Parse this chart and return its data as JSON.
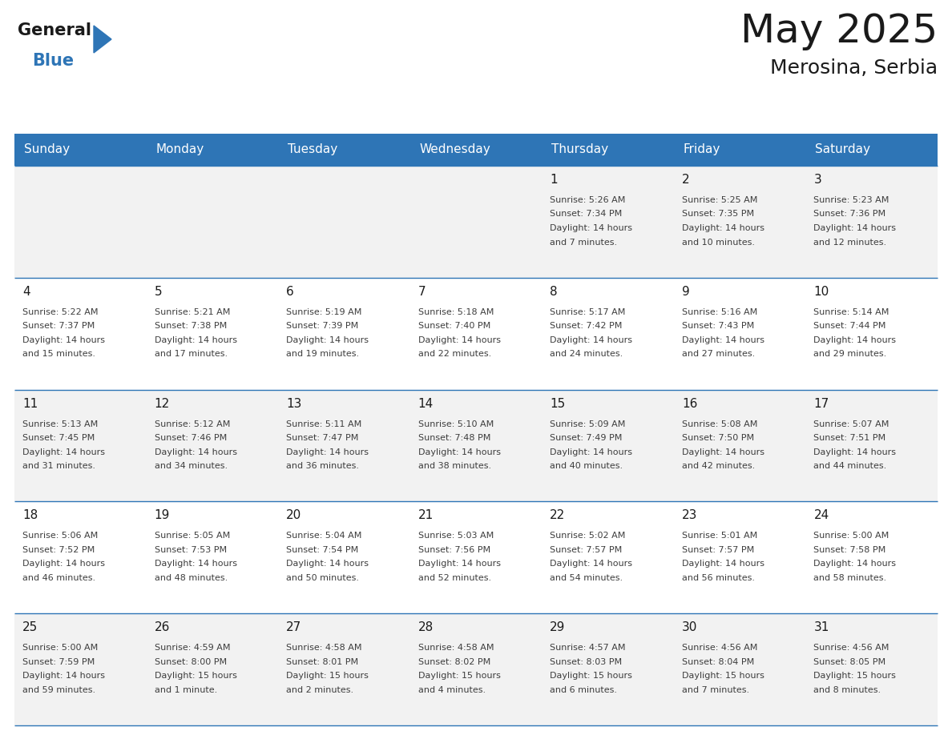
{
  "title": "May 2025",
  "subtitle": "Merosina, Serbia",
  "header_bg": "#2E75B6",
  "header_text_color": "#FFFFFF",
  "weekdays": [
    "Sunday",
    "Monday",
    "Tuesday",
    "Wednesday",
    "Thursday",
    "Friday",
    "Saturday"
  ],
  "cell_bg_row0": "#F2F2F2",
  "cell_bg_row1": "#FFFFFF",
  "cell_bg_row2": "#F2F2F2",
  "cell_bg_row3": "#FFFFFF",
  "cell_bg_row4": "#F2F2F2",
  "text_color": "#3D3D3D",
  "day_number_color": "#1A1A1A",
  "calendar": [
    [
      null,
      null,
      null,
      null,
      {
        "day": 1,
        "rise": "5:26 AM",
        "set": "7:34 PM",
        "hours": 14,
        "mins": 7
      },
      {
        "day": 2,
        "rise": "5:25 AM",
        "set": "7:35 PM",
        "hours": 14,
        "mins": 10
      },
      {
        "day": 3,
        "rise": "5:23 AM",
        "set": "7:36 PM",
        "hours": 14,
        "mins": 12
      }
    ],
    [
      {
        "day": 4,
        "rise": "5:22 AM",
        "set": "7:37 PM",
        "hours": 14,
        "mins": 15
      },
      {
        "day": 5,
        "rise": "5:21 AM",
        "set": "7:38 PM",
        "hours": 14,
        "mins": 17
      },
      {
        "day": 6,
        "rise": "5:19 AM",
        "set": "7:39 PM",
        "hours": 14,
        "mins": 19
      },
      {
        "day": 7,
        "rise": "5:18 AM",
        "set": "7:40 PM",
        "hours": 14,
        "mins": 22
      },
      {
        "day": 8,
        "rise": "5:17 AM",
        "set": "7:42 PM",
        "hours": 14,
        "mins": 24
      },
      {
        "day": 9,
        "rise": "5:16 AM",
        "set": "7:43 PM",
        "hours": 14,
        "mins": 27
      },
      {
        "day": 10,
        "rise": "5:14 AM",
        "set": "7:44 PM",
        "hours": 14,
        "mins": 29
      }
    ],
    [
      {
        "day": 11,
        "rise": "5:13 AM",
        "set": "7:45 PM",
        "hours": 14,
        "mins": 31
      },
      {
        "day": 12,
        "rise": "5:12 AM",
        "set": "7:46 PM",
        "hours": 14,
        "mins": 34
      },
      {
        "day": 13,
        "rise": "5:11 AM",
        "set": "7:47 PM",
        "hours": 14,
        "mins": 36
      },
      {
        "day": 14,
        "rise": "5:10 AM",
        "set": "7:48 PM",
        "hours": 14,
        "mins": 38
      },
      {
        "day": 15,
        "rise": "5:09 AM",
        "set": "7:49 PM",
        "hours": 14,
        "mins": 40
      },
      {
        "day": 16,
        "rise": "5:08 AM",
        "set": "7:50 PM",
        "hours": 14,
        "mins": 42
      },
      {
        "day": 17,
        "rise": "5:07 AM",
        "set": "7:51 PM",
        "hours": 14,
        "mins": 44
      }
    ],
    [
      {
        "day": 18,
        "rise": "5:06 AM",
        "set": "7:52 PM",
        "hours": 14,
        "mins": 46
      },
      {
        "day": 19,
        "rise": "5:05 AM",
        "set": "7:53 PM",
        "hours": 14,
        "mins": 48
      },
      {
        "day": 20,
        "rise": "5:04 AM",
        "set": "7:54 PM",
        "hours": 14,
        "mins": 50
      },
      {
        "day": 21,
        "rise": "5:03 AM",
        "set": "7:56 PM",
        "hours": 14,
        "mins": 52
      },
      {
        "day": 22,
        "rise": "5:02 AM",
        "set": "7:57 PM",
        "hours": 14,
        "mins": 54
      },
      {
        "day": 23,
        "rise": "5:01 AM",
        "set": "7:57 PM",
        "hours": 14,
        "mins": 56
      },
      {
        "day": 24,
        "rise": "5:00 AM",
        "set": "7:58 PM",
        "hours": 14,
        "mins": 58
      }
    ],
    [
      {
        "day": 25,
        "rise": "5:00 AM",
        "set": "7:59 PM",
        "hours": 14,
        "mins": 59
      },
      {
        "day": 26,
        "rise": "4:59 AM",
        "set": "8:00 PM",
        "hours": 15,
        "mins": 1
      },
      {
        "day": 27,
        "rise": "4:58 AM",
        "set": "8:01 PM",
        "hours": 15,
        "mins": 2
      },
      {
        "day": 28,
        "rise": "4:58 AM",
        "set": "8:02 PM",
        "hours": 15,
        "mins": 4
      },
      {
        "day": 29,
        "rise": "4:57 AM",
        "set": "8:03 PM",
        "hours": 15,
        "mins": 6
      },
      {
        "day": 30,
        "rise": "4:56 AM",
        "set": "8:04 PM",
        "hours": 15,
        "mins": 7
      },
      {
        "day": 31,
        "rise": "4:56 AM",
        "set": "8:05 PM",
        "hours": 15,
        "mins": 8
      }
    ]
  ],
  "logo_general_color": "#1A1A1A",
  "logo_blue_color": "#2E75B6",
  "logo_triangle_color": "#2E75B6",
  "fig_width": 11.88,
  "fig_height": 9.18,
  "dpi": 100
}
